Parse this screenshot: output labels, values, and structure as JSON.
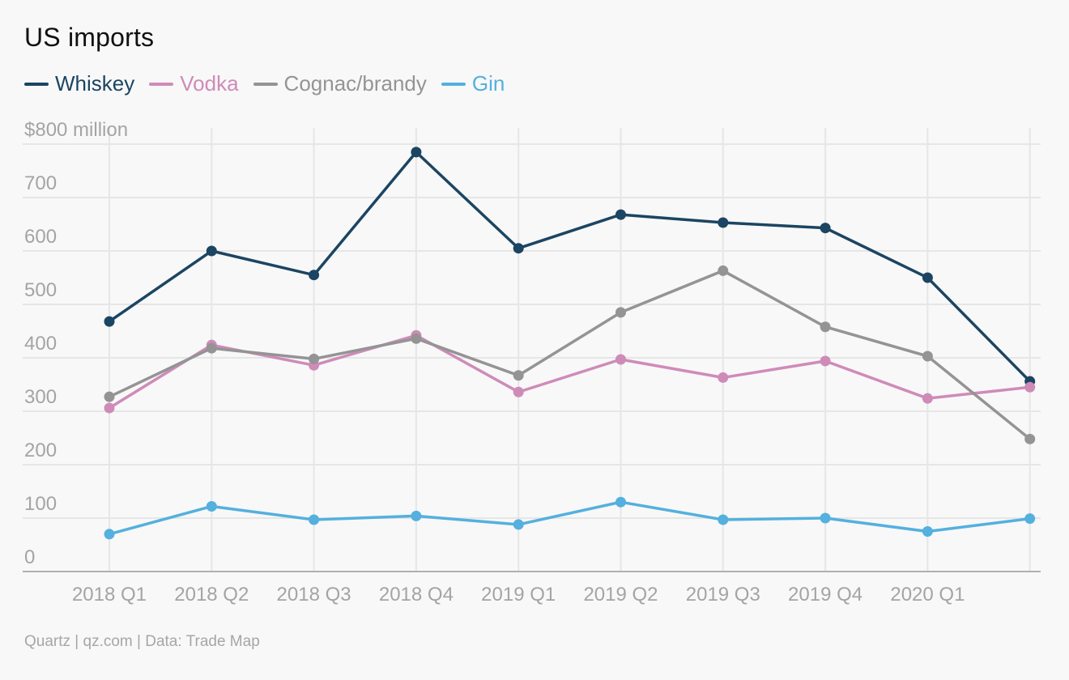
{
  "title": "US imports",
  "source": "Quartz | qz.com | Data: Trade Map",
  "chart_data": {
    "type": "line",
    "title": "US imports",
    "xlabel": "",
    "ylabel": "",
    "x": [
      "2018 Q1",
      "2018 Q2",
      "2018 Q3",
      "2018 Q4",
      "2019 Q1",
      "2019 Q2",
      "2019 Q3",
      "2019 Q4",
      "2020 Q1",
      ""
    ],
    "x_tick_labels": [
      "2018 Q1",
      "2018 Q2",
      "2018 Q3",
      "2018 Q4",
      "2019 Q1",
      "2019 Q2",
      "2019 Q3",
      "2019 Q4",
      "2020 Q1"
    ],
    "y_tick_labels": [
      "0",
      "100",
      "200",
      "300",
      "400",
      "500",
      "600",
      "700",
      "$800 million"
    ],
    "y_ticks": [
      0,
      100,
      200,
      300,
      400,
      500,
      600,
      700,
      800
    ],
    "ylim": [
      0,
      800
    ],
    "grid": true,
    "legend_placement": "top-left",
    "series": [
      {
        "name": "Whiskey",
        "color": "#1b4562",
        "values": [
          468,
          600,
          555,
          785,
          605,
          668,
          653,
          643,
          550,
          356
        ]
      },
      {
        "name": "Vodka",
        "color": "#cf8bb8",
        "values": [
          306,
          424,
          386,
          442,
          336,
          397,
          363,
          394,
          324,
          345
        ]
      },
      {
        "name": "Cognac/brandy",
        "color": "#949494",
        "values": [
          327,
          418,
          398,
          436,
          367,
          485,
          563,
          458,
          403,
          248
        ]
      },
      {
        "name": "Gin",
        "color": "#54b0de",
        "values": [
          70,
          122,
          97,
          104,
          88,
          130,
          97,
          100,
          75,
          99
        ]
      }
    ]
  }
}
